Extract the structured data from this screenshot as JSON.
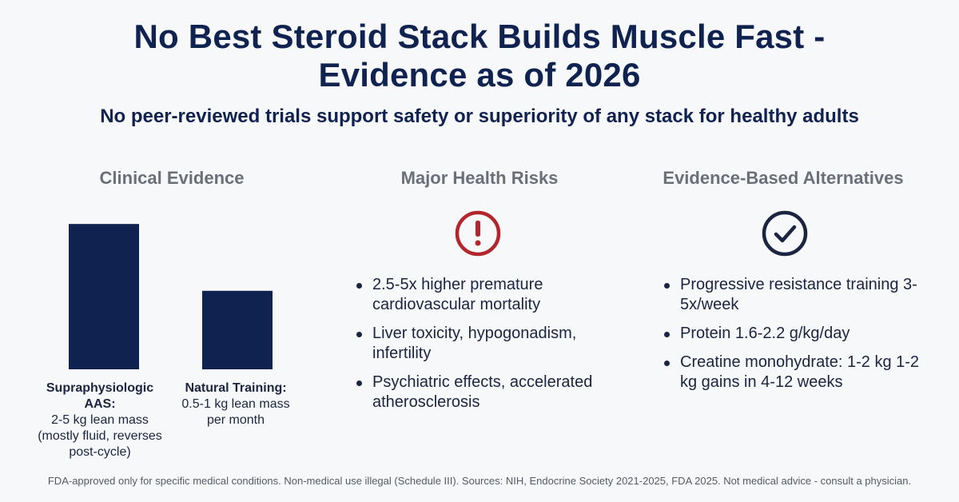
{
  "header": {
    "title_line1": "No Best Steroid Stack Builds Muscle Fast -",
    "title_line2": "Evidence as of 2026",
    "subtitle": "No peer-reviewed trials support safety or superiority of any stack for healthy adults"
  },
  "columns": {
    "evidence": {
      "heading": "Clinical Evidence"
    },
    "risks": {
      "heading": "Major Health Risks",
      "icon": "exclamation-circle-icon",
      "items": [
        "2.5-5x higher premature cardiovascular mortality",
        "Liver toxicity, hypogonadism, infertility",
        "Psychiatric effects, accelerated atherosclerosis"
      ]
    },
    "alternatives": {
      "heading": "Evidence-Based Alternatives",
      "icon": "check-circle-icon",
      "items": [
        "Progressive resistance training 3-5x/week",
        "Protein 1.6-2.2 g/kg/day",
        "Creatine monohydrate: 1-2 kg 1-2 kg gains in 4-12 weeks"
      ]
    }
  },
  "chart_data": {
    "type": "bar",
    "categories": [
      "Supraphysiologic AAS:",
      "Natural Training:"
    ],
    "category_details": [
      "2-5 kg lean mass (mostly fluid, reverses post-cycle)",
      "0.5-1 kg lean mass per month"
    ],
    "values": [
      5,
      2.7
    ],
    "title": "",
    "xlabel": "",
    "ylabel": "",
    "ylim": [
      0,
      5.5
    ],
    "grid": false,
    "bar_color": "#0f2250"
  },
  "footer": {
    "text": "FDA-approved only for specific medical conditions. Non-medical use illegal (Schedule III). Sources: NIH, Endocrine Society 2021-2025, FDA 2025. Not medical advice - consult a physician."
  },
  "colors": {
    "navy": "#0f2250",
    "risk_red": "#b3262d",
    "heading_gray": "#6b6f78",
    "background": "#f7f8fa"
  }
}
